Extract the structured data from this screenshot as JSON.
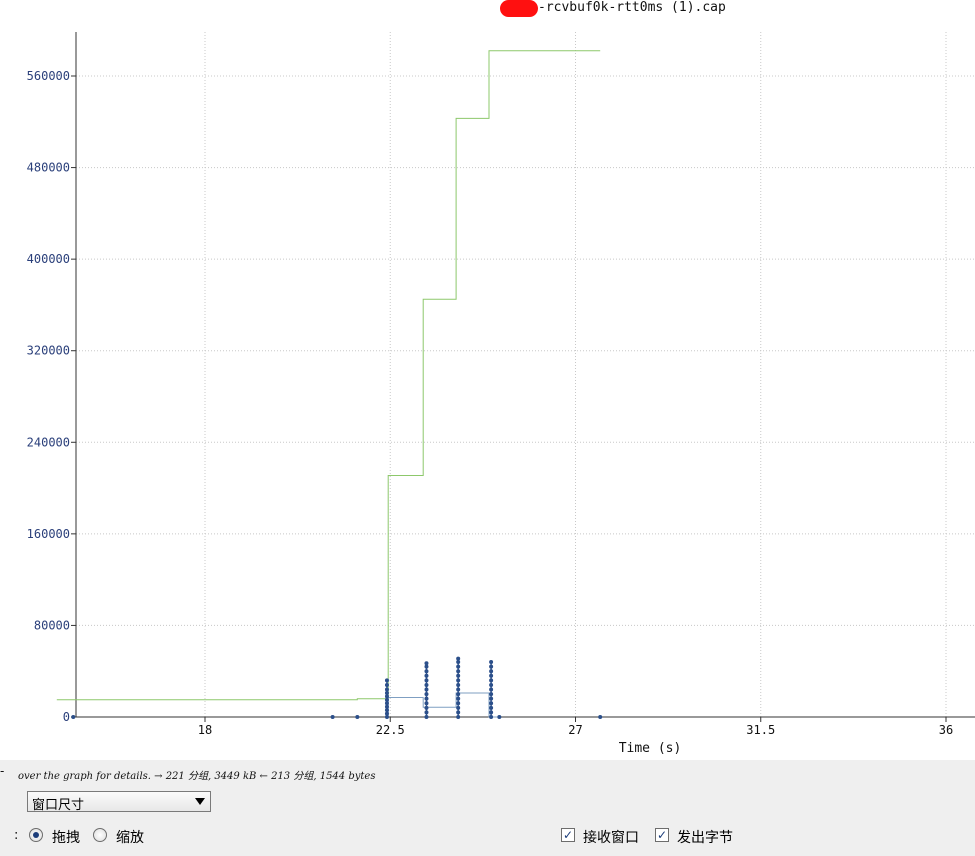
{
  "chart_data": {
    "type": "line",
    "title": "-rcvbuf0k-rtt0ms (1).cap",
    "xlabel": "Time (s)",
    "ylabel": "",
    "xlim": [
      14.4,
      36.7
    ],
    "ylim": [
      0,
      600000
    ],
    "x_ticks": [
      18,
      22.5,
      27,
      31.5,
      36
    ],
    "x_tick_labels": [
      "18",
      "22.5",
      "27",
      "31.5",
      "36"
    ],
    "y_ticks": [
      0,
      80000,
      160000,
      240000,
      320000,
      400000,
      480000,
      560000
    ],
    "y_tick_labels": [
      "0",
      "80000",
      "160000",
      "240000",
      "320000",
      "400000",
      "480000",
      "560000"
    ],
    "grid": true,
    "series": [
      {
        "color": "#8dc86b",
        "style": "step",
        "x": [
          14.4,
          21.7,
          21.7,
          22.45,
          22.45,
          23.3,
          23.3,
          24.1,
          24.1,
          24.9,
          24.9,
          27.6
        ],
        "y": [
          15000,
          15000,
          16000,
          16000,
          211000,
          211000,
          365000,
          365000,
          523000,
          523000,
          582000,
          582000
        ]
      },
      {
        "color": "#7f9fc2",
        "style": "step",
        "x": [
          22.45,
          22.45,
          23.3,
          23.3,
          24.1,
          24.1,
          24.9,
          24.9,
          25.15
        ],
        "y": [
          0,
          17000,
          17000,
          8500,
          8500,
          21000,
          21000,
          0,
          0
        ]
      },
      {
        "color": "#2b4f8a",
        "style": "dots",
        "points": [
          [
            14.8,
            0
          ],
          [
            21.1,
            0
          ],
          [
            21.7,
            0
          ],
          [
            22.42,
            0
          ],
          [
            22.42,
            3000
          ],
          [
            22.42,
            6000
          ],
          [
            22.42,
            9000
          ],
          [
            22.42,
            12000
          ],
          [
            22.42,
            15000
          ],
          [
            22.42,
            18000
          ],
          [
            22.42,
            21000
          ],
          [
            22.42,
            24000
          ],
          [
            22.42,
            28000
          ],
          [
            22.42,
            32000
          ],
          [
            23.38,
            0
          ],
          [
            23.38,
            4000
          ],
          [
            23.38,
            8000
          ],
          [
            23.38,
            12000
          ],
          [
            23.38,
            16000
          ],
          [
            23.38,
            20000
          ],
          [
            23.38,
            24000
          ],
          [
            23.38,
            28000
          ],
          [
            23.38,
            32000
          ],
          [
            23.38,
            36000
          ],
          [
            23.38,
            40000
          ],
          [
            23.38,
            44000
          ],
          [
            23.38,
            47000
          ],
          [
            24.15,
            0
          ],
          [
            24.15,
            4000
          ],
          [
            24.15,
            8000
          ],
          [
            24.15,
            12000
          ],
          [
            24.15,
            16000
          ],
          [
            24.15,
            20000
          ],
          [
            24.15,
            24000
          ],
          [
            24.15,
            28000
          ],
          [
            24.15,
            32000
          ],
          [
            24.15,
            36000
          ],
          [
            24.15,
            40000
          ],
          [
            24.15,
            44000
          ],
          [
            24.15,
            48000
          ],
          [
            24.15,
            51000
          ],
          [
            24.95,
            0
          ],
          [
            24.95,
            4000
          ],
          [
            24.95,
            8000
          ],
          [
            24.95,
            12000
          ],
          [
            24.95,
            16000
          ],
          [
            24.95,
            20000
          ],
          [
            24.95,
            24000
          ],
          [
            24.95,
            28000
          ],
          [
            24.95,
            32000
          ],
          [
            24.95,
            36000
          ],
          [
            24.95,
            40000
          ],
          [
            24.95,
            44000
          ],
          [
            24.95,
            48000
          ],
          [
            25.15,
            0
          ],
          [
            27.6,
            0
          ]
        ]
      }
    ]
  },
  "controls": {
    "hint_text": "over the graph for details. → 221 分组, 3449 kB ← 213 分组, 1544 bytes",
    "hint_cut": "-",
    "select_value": "窗口尺寸",
    "row_cut": ":",
    "radio_drag": "拖拽",
    "radio_zoom": "缩放",
    "check_rwin": "接收窗口",
    "check_bytes": "发出字节",
    "check_mark": "✓"
  }
}
